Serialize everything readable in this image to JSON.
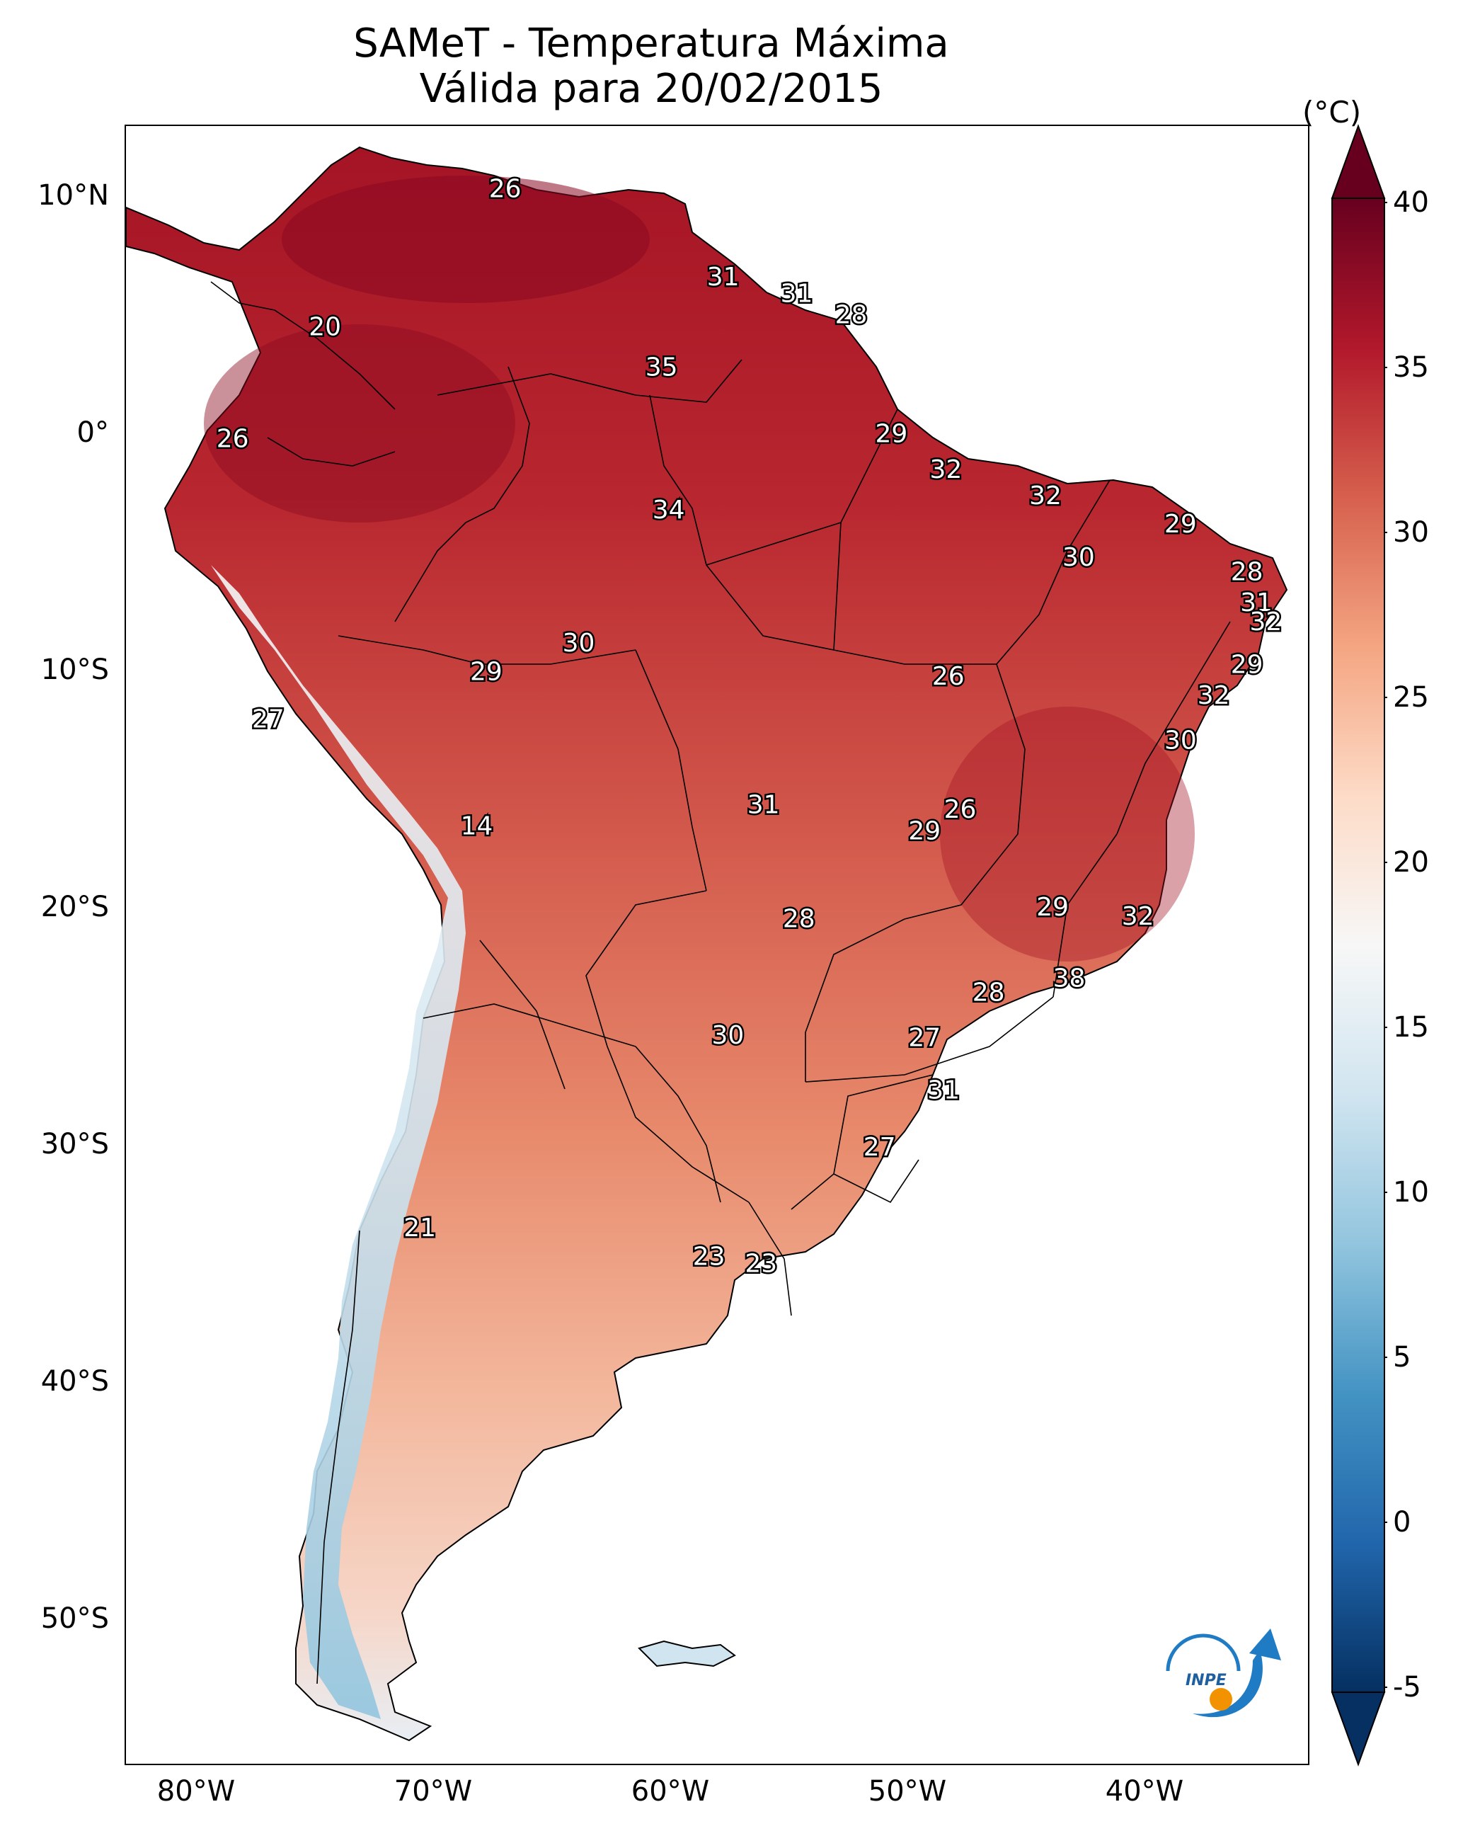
{
  "title": {
    "line1": "SAMeT - Temperatura Máxima",
    "line2": "Válida para 20/02/2015"
  },
  "axes": {
    "lat_ticks": [
      "10°N",
      "0°",
      "10°S",
      "20°S",
      "30°S",
      "40°S",
      "50°S"
    ],
    "lat_values": [
      10,
      0,
      -10,
      -20,
      -30,
      -40,
      -50
    ],
    "lon_ticks": [
      "80°W",
      "70°W",
      "60°W",
      "50°W",
      "40°W"
    ],
    "lon_values": [
      -80,
      -70,
      -60,
      -50,
      -40
    ],
    "lon_range": [
      -83,
      -33
    ],
    "lat_range": [
      -56,
      13
    ]
  },
  "colorbar": {
    "unit": "(°C)",
    "tick_labels": [
      "40",
      "35",
      "30",
      "25",
      "20",
      "15",
      "10",
      "5",
      "0",
      "-5"
    ],
    "range": [
      -5,
      40
    ],
    "colors": [
      "#053061",
      "#2166ac",
      "#4393c3",
      "#92c5de",
      "#d1e5f0",
      "#f7f7f7",
      "#fddbc7",
      "#f4a582",
      "#d6604d",
      "#b2182b",
      "#67001f"
    ]
  },
  "stations": [
    {
      "label": "26",
      "lon": -67.0,
      "lat": 10.3
    },
    {
      "label": "31",
      "lon": -57.8,
      "lat": 6.6
    },
    {
      "label": "31",
      "lon": -54.7,
      "lat": 5.9
    },
    {
      "label": "28",
      "lon": -52.4,
      "lat": 5.0
    },
    {
      "label": "20",
      "lon": -74.6,
      "lat": 4.5
    },
    {
      "label": "35",
      "lon": -60.4,
      "lat": 2.8
    },
    {
      "label": "26",
      "lon": -78.5,
      "lat": -0.2
    },
    {
      "label": "29",
      "lon": -50.7,
      "lat": 0.0
    },
    {
      "label": "32",
      "lon": -48.4,
      "lat": -1.5
    },
    {
      "label": "32",
      "lon": -44.2,
      "lat": -2.6
    },
    {
      "label": "34",
      "lon": -60.1,
      "lat": -3.2
    },
    {
      "label": "29",
      "lon": -38.5,
      "lat": -3.8
    },
    {
      "label": "30",
      "lon": -42.8,
      "lat": -5.2
    },
    {
      "label": "28",
      "lon": -35.7,
      "lat": -5.8
    },
    {
      "label": "31",
      "lon": -35.3,
      "lat": -7.1
    },
    {
      "label": "32",
      "lon": -34.9,
      "lat": -7.9
    },
    {
      "label": "30",
      "lon": -63.9,
      "lat": -8.8
    },
    {
      "label": "29",
      "lon": -35.7,
      "lat": -9.7
    },
    {
      "label": "29",
      "lon": -67.8,
      "lat": -10.0
    },
    {
      "label": "26",
      "lon": -48.3,
      "lat": -10.2
    },
    {
      "label": "32",
      "lon": -37.1,
      "lat": -11.0
    },
    {
      "label": "27",
      "lon": -77.0,
      "lat": -12.0
    },
    {
      "label": "30",
      "lon": -38.5,
      "lat": -12.9
    },
    {
      "label": "31",
      "lon": -56.1,
      "lat": -15.6
    },
    {
      "label": "26",
      "lon": -47.8,
      "lat": -15.8
    },
    {
      "label": "29",
      "lon": -49.3,
      "lat": -16.7
    },
    {
      "label": "14",
      "lon": -68.2,
      "lat": -16.5
    },
    {
      "label": "29",
      "lon": -43.9,
      "lat": -19.9
    },
    {
      "label": "32",
      "lon": -40.3,
      "lat": -20.3
    },
    {
      "label": "28",
      "lon": -54.6,
      "lat": -20.4
    },
    {
      "label": "38",
      "lon": -43.2,
      "lat": -22.9
    },
    {
      "label": "28",
      "lon": -46.6,
      "lat": -23.5
    },
    {
      "label": "30",
      "lon": -57.6,
      "lat": -25.3
    },
    {
      "label": "27",
      "lon": -49.3,
      "lat": -25.4
    },
    {
      "label": "31",
      "lon": -48.5,
      "lat": -27.6
    },
    {
      "label": "27",
      "lon": -51.2,
      "lat": -30.0
    },
    {
      "label": "21",
      "lon": -70.6,
      "lat": -33.4
    },
    {
      "label": "23",
      "lon": -58.4,
      "lat": -34.6
    },
    {
      "label": "23",
      "lon": -56.2,
      "lat": -34.9
    }
  ]
}
